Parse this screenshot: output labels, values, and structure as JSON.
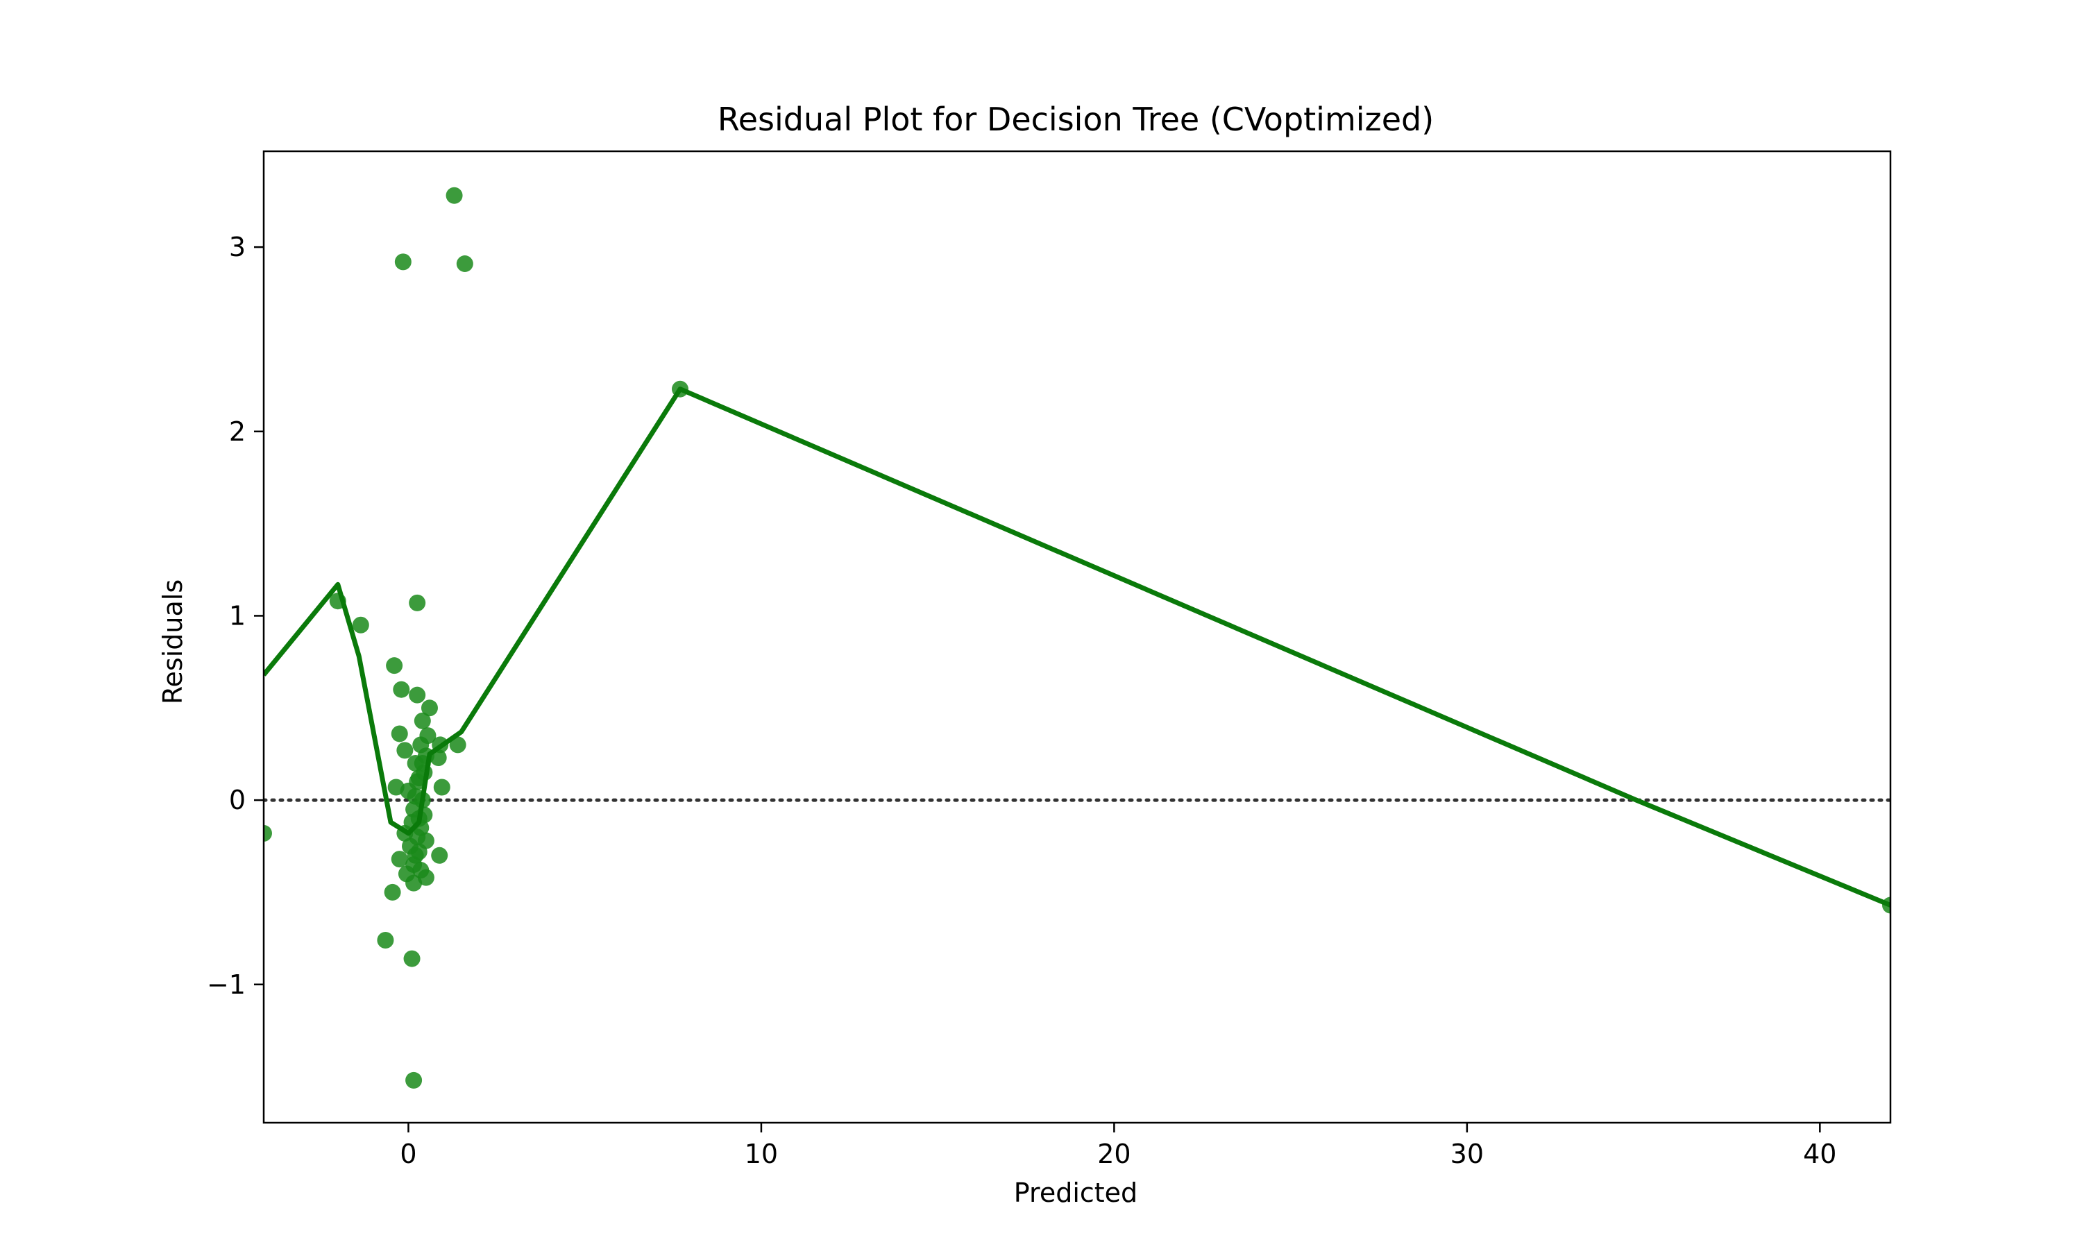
{
  "chart_data": {
    "type": "scatter",
    "title": "Residual Plot for Decision Tree (CVoptimized)",
    "xlabel": "Predicted",
    "ylabel": "Residuals",
    "xlim": [
      -4.1,
      42.0
    ],
    "ylim": [
      -1.75,
      3.52
    ],
    "xticks": [
      0,
      10,
      20,
      30,
      40
    ],
    "yticks": [
      -1,
      0,
      1,
      2,
      3
    ],
    "xtick_labels": [
      "0",
      "10",
      "20",
      "30",
      "40"
    ],
    "ytick_labels": [
      "−1",
      "0",
      "1",
      "2",
      "3"
    ],
    "grid": false,
    "zero_line": {
      "y": 0,
      "style": "dotted",
      "color": "#333333"
    },
    "colors": {
      "points": "#1a8a1a",
      "line": "#0a7a0a"
    },
    "points": [
      [
        -4.1,
        -0.18
      ],
      [
        -2.0,
        1.08
      ],
      [
        -1.35,
        0.95
      ],
      [
        1.3,
        3.28
      ],
      [
        -0.15,
        2.92
      ],
      [
        1.6,
        2.91
      ],
      [
        7.7,
        2.23
      ],
      [
        42.0,
        -0.57
      ],
      [
        0.25,
        1.07
      ],
      [
        -0.4,
        0.73
      ],
      [
        -0.2,
        0.6
      ],
      [
        0.25,
        0.57
      ],
      [
        0.6,
        0.5
      ],
      [
        0.4,
        0.43
      ],
      [
        -0.25,
        0.36
      ],
      [
        0.55,
        0.35
      ],
      [
        0.9,
        0.3
      ],
      [
        1.4,
        0.3
      ],
      [
        -0.1,
        0.27
      ],
      [
        0.35,
        0.3
      ],
      [
        0.85,
        0.23
      ],
      [
        0.5,
        0.24
      ],
      [
        0.2,
        0.2
      ],
      [
        0.45,
        0.15
      ],
      [
        0.3,
        0.12
      ],
      [
        0.95,
        0.07
      ],
      [
        -0.35,
        0.07
      ],
      [
        0.0,
        0.05
      ],
      [
        0.2,
        0.02
      ],
      [
        0.4,
        0.0
      ],
      [
        0.15,
        -0.05
      ],
      [
        0.45,
        -0.08
      ],
      [
        0.1,
        -0.12
      ],
      [
        0.35,
        -0.15
      ],
      [
        -0.1,
        -0.18
      ],
      [
        0.25,
        -0.2
      ],
      [
        0.5,
        -0.22
      ],
      [
        0.05,
        -0.25
      ],
      [
        0.3,
        -0.28
      ],
      [
        0.88,
        -0.3
      ],
      [
        -0.25,
        -0.32
      ],
      [
        0.15,
        -0.35
      ],
      [
        0.35,
        -0.38
      ],
      [
        -0.05,
        -0.4
      ],
      [
        0.5,
        -0.42
      ],
      [
        0.15,
        -0.45
      ],
      [
        -0.45,
        -0.5
      ],
      [
        -0.65,
        -0.76
      ],
      [
        0.1,
        -0.86
      ],
      [
        0.15,
        -1.52
      ],
      [
        0.25,
        0.1
      ],
      [
        0.3,
        -0.1
      ],
      [
        0.4,
        0.2
      ],
      [
        0.2,
        -0.3
      ]
    ],
    "lowess": [
      [
        -4.1,
        0.68
      ],
      [
        -2.0,
        1.17
      ],
      [
        -1.4,
        0.78
      ],
      [
        -0.5,
        -0.12
      ],
      [
        0.0,
        -0.18
      ],
      [
        0.3,
        -0.12
      ],
      [
        0.6,
        0.25
      ],
      [
        1.5,
        0.37
      ],
      [
        7.7,
        2.23
      ],
      [
        34.8,
        0.0
      ],
      [
        42.0,
        -0.57
      ]
    ]
  }
}
